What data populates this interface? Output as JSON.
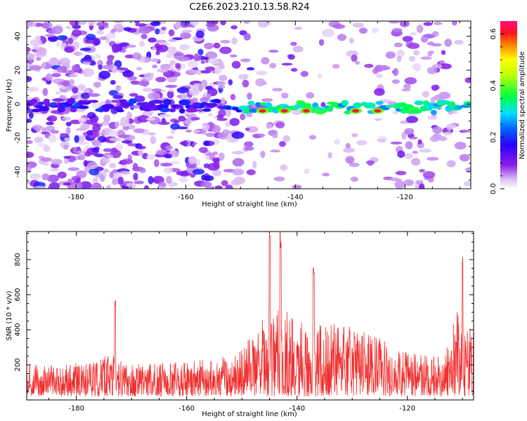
{
  "title": "C2E6.2023.210.13.58.R24",
  "chart_data": [
    {
      "type": "heatmap",
      "xlabel": "Height of straight line (km)",
      "ylabel": "Frequency (Hz)",
      "xlim": [
        -189,
        -108
      ],
      "ylim": [
        -50,
        49
      ],
      "x_ticks": [
        -180,
        -160,
        -140,
        -120
      ],
      "y_ticks": [
        -40,
        -20,
        0,
        20,
        40
      ],
      "colorbar": {
        "label": "Normalized spectral amplitude",
        "range": [
          0.0,
          0.65
        ],
        "ticks": [
          0.0,
          0.2,
          0.4,
          0.6
        ]
      },
      "dominant_band": {
        "frequency_center": -4,
        "x_range": [
          -150,
          -108
        ],
        "peak_amplitude": 0.6,
        "peak_heights": [
          -146,
          -142,
          -138,
          -129,
          -125
        ]
      }
    },
    {
      "type": "line",
      "xlabel": "Height of straight line (km)",
      "ylabel": "SNR (10 * v/v)",
      "xlim": [
        -189,
        -108
      ],
      "ylim": [
        0,
        960
      ],
      "x_ticks": [
        -180,
        -160,
        -140,
        -120
      ],
      "y_ticks": [
        200,
        400,
        600,
        800
      ],
      "series": [
        {
          "color": "#f03030",
          "envelope": {
            "x": [
              -189,
              -180,
              -174,
              -170,
              -160,
              -152,
              -147,
              -145,
              -143,
              -140,
              -135,
              -130,
              -125,
              -120,
              -115,
              -113,
              -111,
              -108
            ],
            "y": [
              180,
              190,
              240,
              180,
              200,
              230,
              380,
              560,
              520,
              460,
              420,
              400,
              330,
              250,
              230,
              300,
              500,
              380
            ]
          },
          "peaks": [
            {
              "x": -173,
              "y": 580
            },
            {
              "x": -145,
              "y": 960
            },
            {
              "x": -143,
              "y": 960
            },
            {
              "x": -137,
              "y": 780
            },
            {
              "x": -110,
              "y": 830
            }
          ]
        }
      ]
    }
  ]
}
